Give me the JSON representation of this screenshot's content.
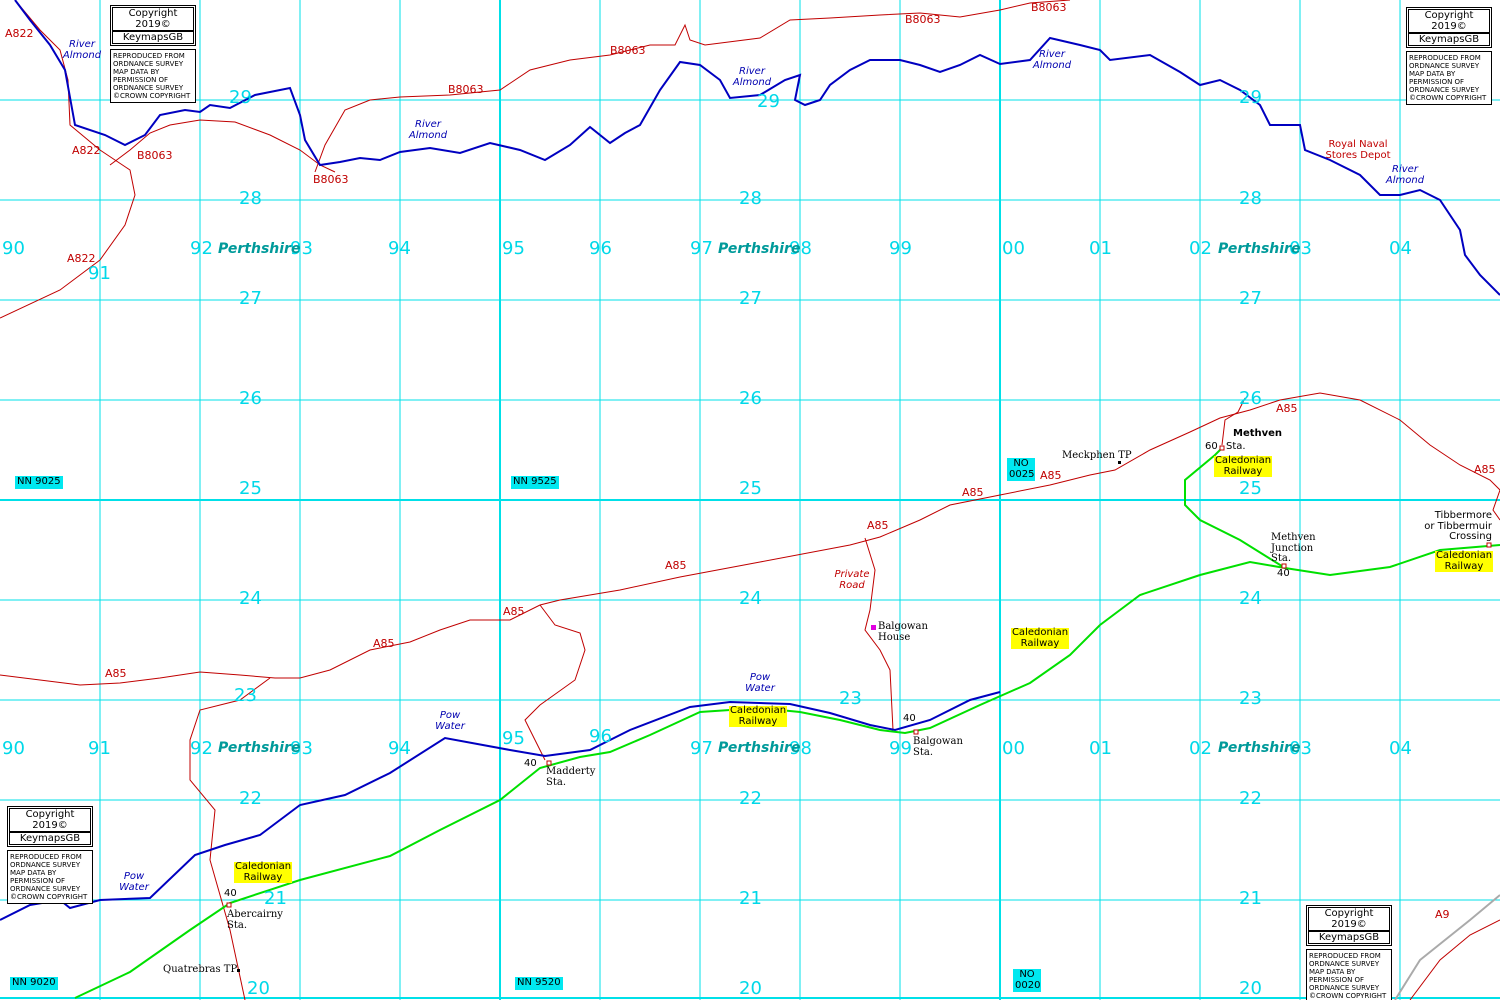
{
  "grid": {
    "eastings": [
      "90",
      "91",
      "92",
      "93",
      "94",
      "95",
      "96",
      "97",
      "98",
      "99",
      "00",
      "01",
      "02",
      "03",
      "04"
    ],
    "northings": [
      "29",
      "28",
      "27",
      "26",
      "25",
      "24",
      "23",
      "22",
      "21",
      "20"
    ]
  },
  "county": "Perthshire",
  "grid_refs": [
    "NN 9025",
    "NN 9525",
    "NO 0025",
    "NN 9020",
    "NN 9520",
    "NO 0020"
  ],
  "roads": {
    "a822": "A822",
    "b8063": "B8063",
    "a85": "A85",
    "a9": "A9",
    "private_road": "Private Road"
  },
  "water": {
    "river_almond": "River Almond",
    "pow_water": "Pow Water"
  },
  "railway": "Caledonian Railway",
  "places": {
    "royal_naval": "Royal Naval Stores Depot",
    "methven": "Methven",
    "sta": "Sta.",
    "methven_junction": "Methven Junction Sta.",
    "tibbermore": "Tibbermore or Tibbermuir Crossing",
    "balgowan_house": "Balgowan House",
    "balgowan_sta": "Balgowan Sta.",
    "madderty": "Madderty Sta.",
    "abercairny": "Abercairny Sta.",
    "quatrebras": "Quatrebras TP",
    "meckphen": "Meckphen TP"
  },
  "mileposts": [
    "60",
    "40"
  ],
  "copyright": {
    "year": "Copyright 2019©",
    "brand": "KeymapsGB",
    "notice": "REPRODUCED FROM ORDNANCE SURVEY MAP DATA BY PERMISSION OF ORDNANCE SURVEY",
    "crown": "©CROWN COPYRIGHT"
  }
}
